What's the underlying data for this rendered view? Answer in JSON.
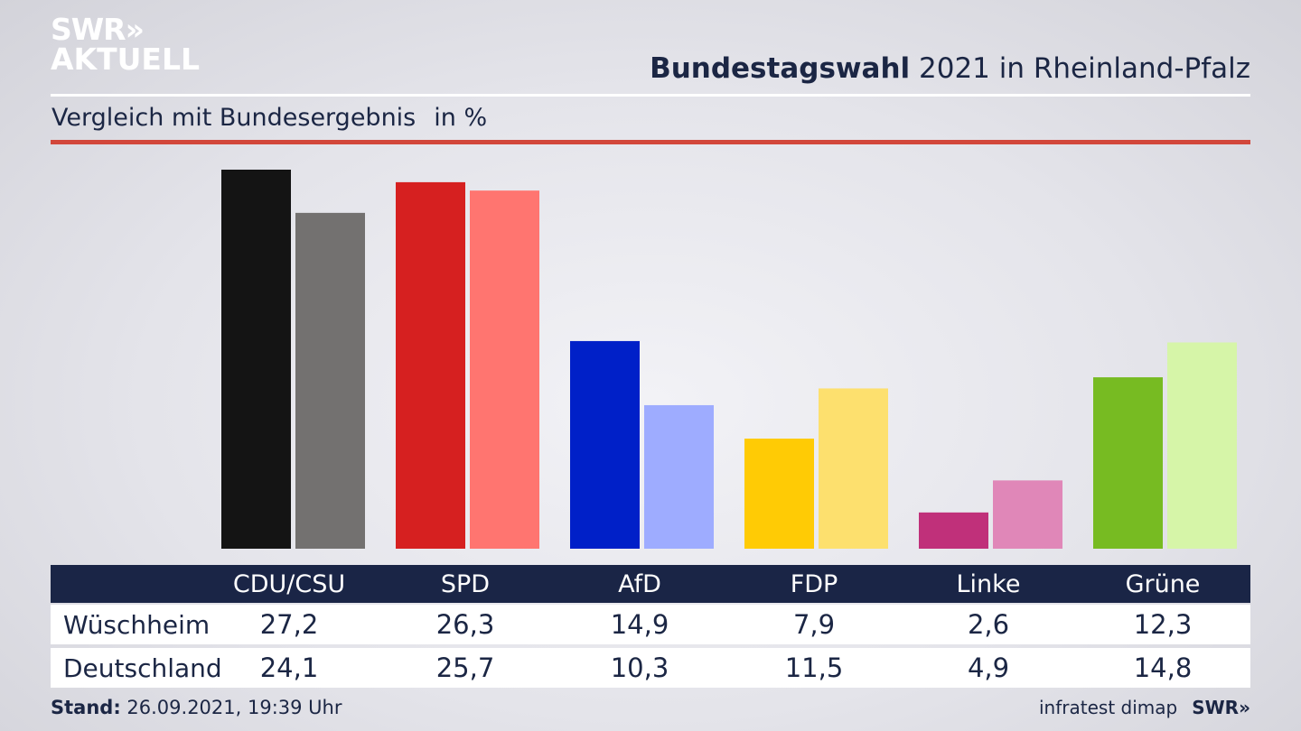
{
  "brand": {
    "logo_line1": "SWR»",
    "logo_line2": "AKTUELL",
    "footer_logo": "SWR»"
  },
  "header": {
    "title_bold": "Bundestagswahl",
    "title_rest": " 2021 in Rheinland-Pfalz",
    "subtitle": "Vergleich mit Bundesergebnis",
    "unit": "in %"
  },
  "table": {
    "columns": [
      "CDU/CSU",
      "SPD",
      "AfD",
      "FDP",
      "Linke",
      "Grüne"
    ],
    "rows": [
      {
        "label": "Wüschheim",
        "values": [
          "27,2",
          "26,3",
          "14,9",
          "7,9",
          "2,6",
          "12,3"
        ]
      },
      {
        "label": "Deutschland",
        "values": [
          "24,1",
          "25,7",
          "10,3",
          "11,5",
          "4,9",
          "14,8"
        ]
      }
    ]
  },
  "footer": {
    "stand_label": "Stand:",
    "stand_value": " 26.09.2021, 19:39 Uhr",
    "source": "infratest dimap"
  },
  "chart_data": {
    "type": "bar",
    "categories": [
      "CDU/CSU",
      "SPD",
      "AfD",
      "FDP",
      "Linke",
      "Grüne"
    ],
    "series": [
      {
        "name": "Wüschheim",
        "values": [
          27.2,
          26.3,
          14.9,
          7.9,
          2.6,
          12.3
        ]
      },
      {
        "name": "Deutschland",
        "values": [
          24.1,
          25.7,
          10.3,
          11.5,
          4.9,
          14.8
        ]
      }
    ],
    "colors": {
      "primary": [
        "#141414",
        "#d62020",
        "#0020c8",
        "#ffcb05",
        "#c0307a",
        "#77bb22"
      ],
      "secondary": [
        "#737170",
        "#ff7570",
        "#9eacff",
        "#fde06e",
        "#e087b8",
        "#d6f5a8"
      ]
    },
    "ylim": [
      0,
      27.2
    ],
    "grid": false
  }
}
